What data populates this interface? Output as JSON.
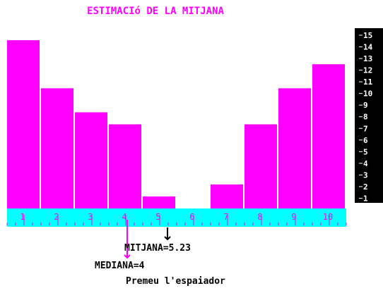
{
  "title": "ESTIMACIó DE LA MITJANA",
  "colors": {
    "bar": "#ff00ff",
    "axis_band": "#00ffff",
    "scale_bg": "#000000",
    "scale_text": "#ffffff",
    "arrow_mean": "#000000",
    "arrow_median": "#ff00ff"
  },
  "chart_data": {
    "type": "bar",
    "categories": [
      "1",
      "2",
      "3",
      "4",
      "5",
      "6",
      "7",
      "8",
      "9",
      "10"
    ],
    "values": [
      14,
      10,
      8,
      7,
      1,
      0,
      2,
      7,
      10,
      12
    ],
    "ylim": [
      0,
      15
    ],
    "yticks": [
      "1",
      "2",
      "3",
      "4",
      "5",
      "6",
      "7",
      "8",
      "9",
      "10",
      "11",
      "12",
      "13",
      "14",
      "15"
    ],
    "grid": false
  },
  "stats": {
    "mean_text": "MITJANA=5.23",
    "median_text": "MEDIANA=4",
    "mean_value": 5.23,
    "median_value": 4
  },
  "prompt": "Premeu l'espaiador"
}
